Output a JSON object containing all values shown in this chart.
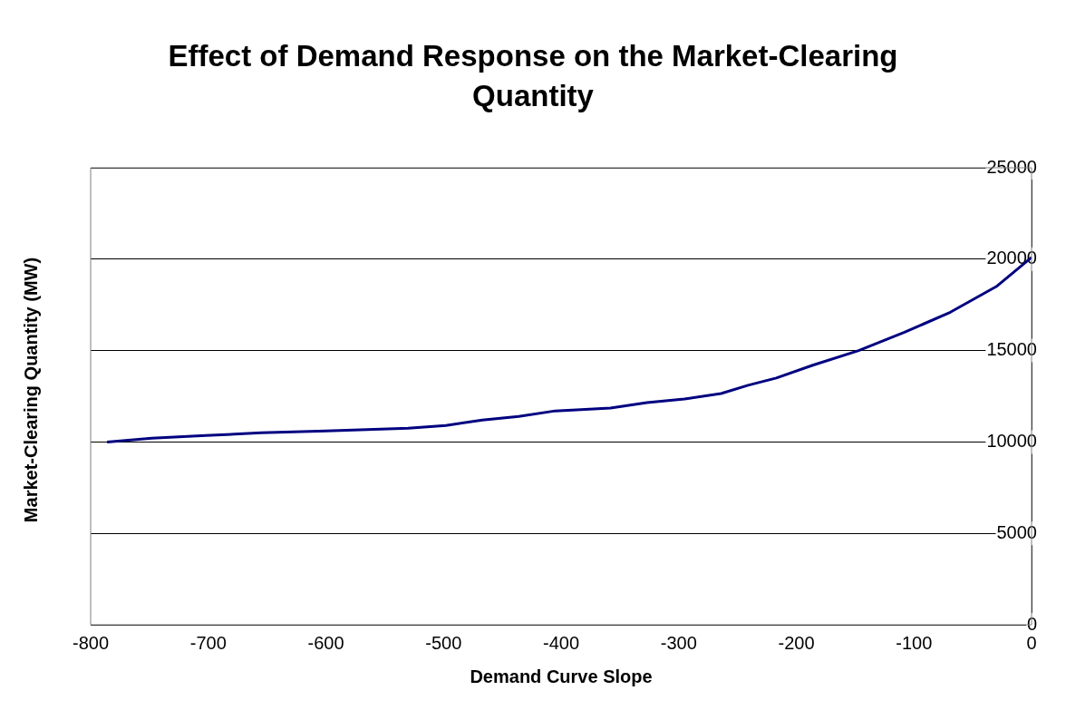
{
  "chart_data": {
    "type": "line",
    "title": "Effect of Demand Response on the Market-Clearing Quantity",
    "xlabel": "Demand Curve Slope",
    "ylabel": "Market-Clearing Quantity (MW)",
    "x": [
      -786,
      -748,
      -702,
      -655,
      -600,
      -530,
      -498,
      -467,
      -436,
      -405,
      -358,
      -327,
      -295,
      -264,
      -241,
      -217,
      -186,
      -147,
      -108,
      -69,
      -30,
      0
    ],
    "series": [
      {
        "color": "#000080",
        "values": [
          10000,
          10200,
          10350,
          10500,
          10600,
          10750,
          10900,
          11200,
          11400,
          11700,
          11850,
          12150,
          12350,
          12650,
          13100,
          13500,
          14200,
          15000,
          16000,
          17100,
          18500,
          20100
        ]
      }
    ],
    "xlim": [
      -800,
      0
    ],
    "xticks": [
      -800,
      -700,
      -600,
      -500,
      -400,
      -300,
      -200,
      -100,
      0
    ],
    "ylim": [
      0,
      25000
    ],
    "yticks": [
      0,
      5000,
      10000,
      15000,
      20000,
      25000
    ],
    "grid": "y",
    "legend": false,
    "marker": "none",
    "line_style": "solid"
  }
}
